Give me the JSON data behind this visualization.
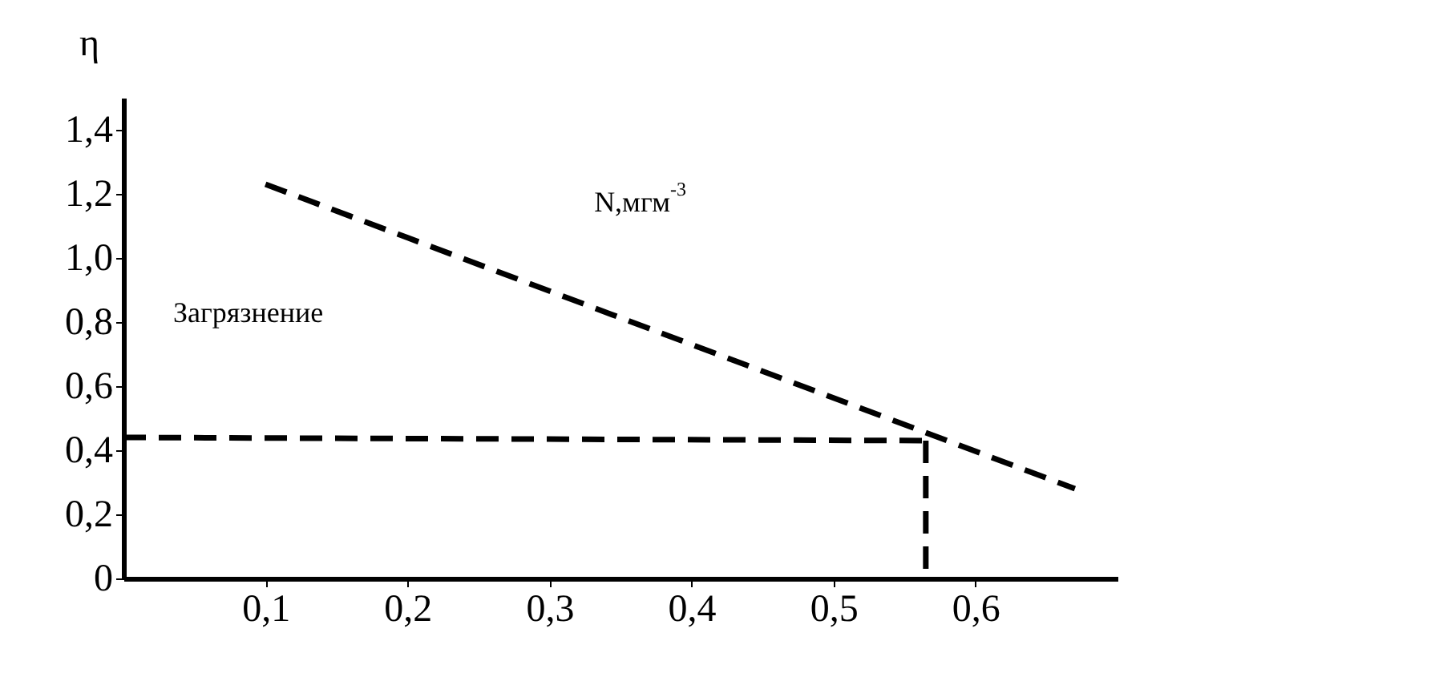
{
  "chart_data": {
    "type": "line",
    "ylabel": "η",
    "annotations": [
      "Загрязнение",
      "N,мгм$^{-3}$"
    ],
    "xlim": [
      0,
      0.7
    ],
    "ylim": [
      0,
      1.5
    ],
    "xticks": [
      {
        "value": 0.1,
        "label": "0,1"
      },
      {
        "value": 0.2,
        "label": "0,2"
      },
      {
        "value": 0.3,
        "label": "0,3"
      },
      {
        "value": 0.4,
        "label": "0,4"
      },
      {
        "value": 0.5,
        "label": "0,5"
      },
      {
        "value": 0.6,
        "label": "0,6"
      }
    ],
    "yticks": [
      {
        "value": 0,
        "label": "0"
      },
      {
        "value": 0.2,
        "label": "0,2"
      },
      {
        "value": 0.4,
        "label": "0,4"
      },
      {
        "value": 0.6,
        "label": "0,6"
      },
      {
        "value": 0.8,
        "label": "0,8"
      },
      {
        "value": 1.0,
        "label": "1,0"
      },
      {
        "value": 1.2,
        "label": "1,2"
      },
      {
        "value": 1.4,
        "label": "1,4"
      }
    ],
    "grid": false,
    "line_style": "dashed",
    "series": [
      {
        "color": "#000000",
        "x": [
          0.1,
          0.67
        ],
        "values": [
          1.23,
          0.28
        ]
      },
      {
        "color": "#000000",
        "x": [
          0,
          0.565
        ],
        "values": [
          0.44,
          0.43
        ]
      },
      {
        "color": "#000000",
        "x": [
          0.565,
          0.565
        ],
        "values": [
          0.43,
          0
        ]
      }
    ]
  }
}
